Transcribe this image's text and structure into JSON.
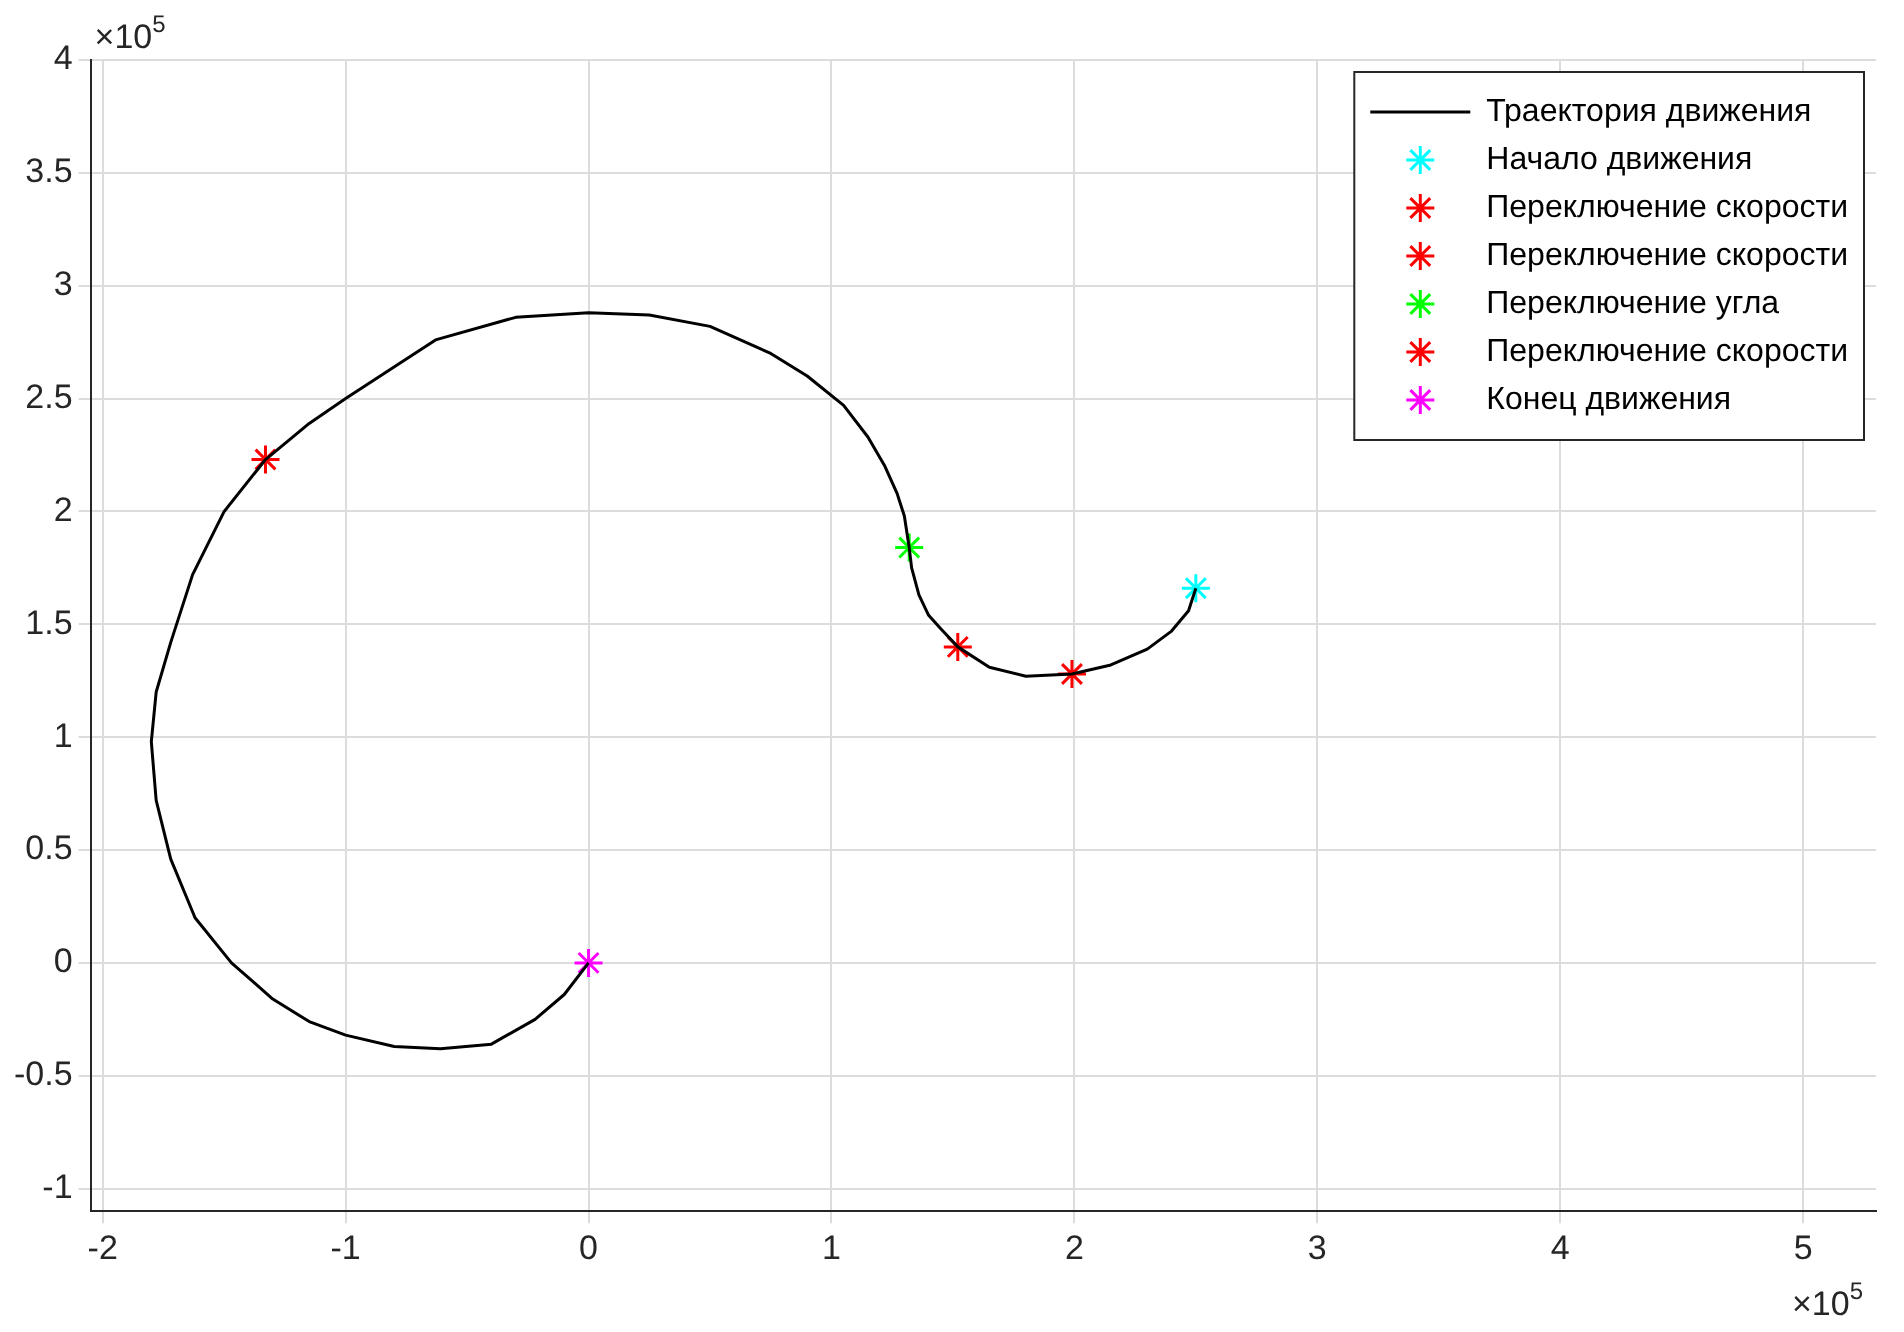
{
  "chart_data": {
    "type": "scatter",
    "annotations": [
      "×10$^{5}$",
      "×10$^{5}$"
    ],
    "xlim": [
      -2.05,
      5.3
    ],
    "ylim": [
      -1.1,
      4
    ],
    "xticks": [
      -2,
      -1,
      0,
      1,
      2,
      3,
      4,
      5
    ],
    "yticks": [
      -1,
      -0.5,
      0,
      0.5,
      1,
      1.5,
      2,
      2.5,
      3,
      3.5,
      4
    ],
    "grid": true,
    "legend": "top right",
    "marker": "cross",
    "line_style": "solid",
    "series": [
      {
        "name": "Траектория движения",
        "type": "line",
        "color": "#000000",
        "marker": "none",
        "x": [
          2.5,
          2.47,
          2.4,
          2.3,
          2.15,
          1.99,
          1.8,
          1.65,
          1.52,
          1.45,
          1.4,
          1.36,
          1.33,
          1.32,
          1.3,
          1.27,
          1.22,
          1.15,
          1.05,
          0.9,
          0.75,
          0.5,
          0.25,
          0,
          -0.3,
          -0.63,
          -1,
          -1.15,
          -1.33,
          -1.5,
          -1.63,
          -1.72,
          -1.78,
          -1.8,
          -1.78,
          -1.72,
          -1.62,
          -1.47,
          -1.3,
          -1.15,
          -1,
          -0.8,
          -0.61,
          -0.4,
          -0.22,
          -0.1,
          0
        ],
        "values": [
          1.66,
          1.56,
          1.47,
          1.39,
          1.32,
          1.28,
          1.27,
          1.31,
          1.4,
          1.48,
          1.54,
          1.63,
          1.75,
          1.84,
          1.98,
          2.08,
          2.2,
          2.33,
          2.47,
          2.6,
          2.7,
          2.82,
          2.87,
          2.88,
          2.86,
          2.76,
          2.5,
          2.39,
          2.23,
          2.0,
          1.72,
          1.42,
          1.2,
          0.98,
          0.72,
          0.46,
          0.2,
          0,
          -0.16,
          -0.26,
          -0.32,
          -0.37,
          -0.38,
          -0.36,
          -0.25,
          -0.14,
          0
        ]
      },
      {
        "name": "Начало движения",
        "color": "#00ffff",
        "x": [
          2.5
        ],
        "values": [
          1.66
        ]
      },
      {
        "name": "Переключение скорости",
        "color": "#ff0000",
        "x": [
          1.99
        ],
        "values": [
          1.28
        ]
      },
      {
        "name": "Переключение скорости",
        "color": "#ff0000",
        "x": [
          1.52
        ],
        "values": [
          1.4
        ]
      },
      {
        "name": "Переключение угла",
        "color": "#00ff00",
        "x": [
          1.32
        ],
        "values": [
          1.84
        ]
      },
      {
        "name": "Переключение скорости",
        "color": "#ff0000",
        "x": [
          -1.33
        ],
        "values": [
          2.23
        ]
      },
      {
        "name": "Конец движения",
        "color": "#ff00ff",
        "x": [
          0
        ],
        "values": [
          0
        ]
      }
    ]
  }
}
